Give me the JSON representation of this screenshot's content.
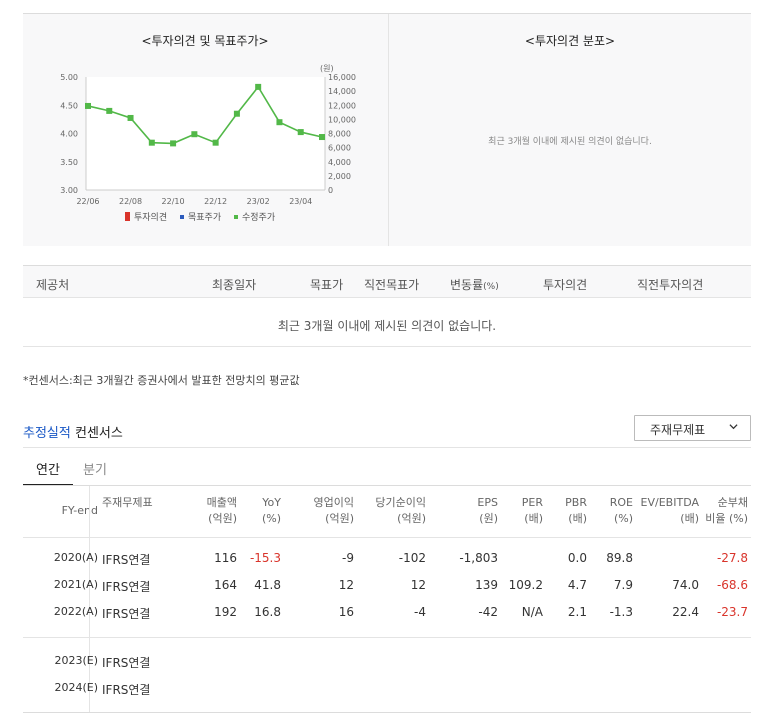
{
  "panels": {
    "left_title": "<투자의견 및 목표주가>",
    "right_title": "<투자의견 분포>",
    "right_empty": "최근 3개월 이내에 제시된 의견이 없습니다."
  },
  "chart_data": {
    "type": "line",
    "left_axis_ticks": [
      "5.00",
      "4.50",
      "4.00",
      "3.50",
      "3.00"
    ],
    "left_axis_range": [
      3.0,
      5.0
    ],
    "right_axis_unit": "(원)",
    "right_axis_ticks": [
      "16,000",
      "14,000",
      "12,000",
      "10,000",
      "8,000",
      "6,000",
      "4,000",
      "2,000",
      "0"
    ],
    "right_axis_range": [
      0,
      16000
    ],
    "x_ticks": [
      "22/06",
      "22/08",
      "22/10",
      "22/12",
      "23/02",
      "23/04"
    ],
    "legend": [
      "투자의견",
      "목표주가",
      "수정주가"
    ],
    "legend_colors": [
      "#d9342b",
      "#2c5bbd",
      "#52b848"
    ],
    "series": [
      {
        "name": "수정주가",
        "color": "#52b848",
        "x": [
          "22/06",
          "22/07",
          "22/08",
          "22/09",
          "22/10",
          "22/11",
          "22/12",
          "23/01",
          "23/02",
          "23/03",
          "23/04",
          "23/05"
        ],
        "values": [
          11900,
          11200,
          10200,
          6700,
          6600,
          7900,
          6700,
          10800,
          14600,
          9600,
          8200,
          7500
        ]
      }
    ]
  },
  "opinion_table": {
    "headers": [
      "제공처",
      "최종일자",
      "목표가",
      "직전목표가",
      "변동률",
      "(%)",
      "투자의견",
      "직전투자의견"
    ],
    "empty": "최근 3개월 이내에 제시된 의견이 없습니다."
  },
  "note": "*컨센서스:최근 3개월간 증권사에서 발표한 전망치의 평균값",
  "consensus": {
    "title_accent": "추정실적",
    "title_rest": "컨센서스",
    "select_value": "주재무제표"
  },
  "tabs": {
    "annual": "연간",
    "quarter": "분기"
  },
  "table": {
    "headers": [
      [
        "FY-end"
      ],
      [
        "주재무제표"
      ],
      [
        "매출액",
        "(억원)"
      ],
      [
        "YoY",
        "(%)"
      ],
      [
        "영업이익",
        "(억원)"
      ],
      [
        "당기순이익",
        "(억원)"
      ],
      [
        "EPS",
        "(원)"
      ],
      [
        "PER",
        "(배)"
      ],
      [
        "PBR",
        "(배)"
      ],
      [
        "ROE",
        "(%)"
      ],
      [
        "EV/EBITDA",
        "(배)"
      ],
      [
        "순부채",
        "비율 (%)"
      ]
    ],
    "rows": [
      [
        "2020(A)",
        "IFRS연결",
        "116",
        "-15.3",
        "-9",
        "-102",
        "-1,803",
        "",
        "0.0",
        "89.8",
        "",
        "-27.8"
      ],
      [
        "2021(A)",
        "IFRS연결",
        "164",
        "41.8",
        "12",
        "12",
        "139",
        "109.2",
        "4.7",
        "7.9",
        "74.0",
        "-68.6"
      ],
      [
        "2022(A)",
        "IFRS연결",
        "192",
        "16.8",
        "16",
        "-4",
        "-42",
        "N/A",
        "2.1",
        "-1.3",
        "22.4",
        "-23.7"
      ],
      [
        "2023(E)",
        "IFRS연결",
        "",
        "",
        "",
        "",
        "",
        "",
        "",
        "",
        "",
        ""
      ],
      [
        "2024(E)",
        "IFRS연결",
        "",
        "",
        "",
        "",
        "",
        "",
        "",
        "",
        "",
        ""
      ]
    ],
    "red_cells": [
      [
        0,
        3
      ],
      [
        0,
        11
      ],
      [
        1,
        11
      ],
      [
        2,
        11
      ]
    ]
  }
}
